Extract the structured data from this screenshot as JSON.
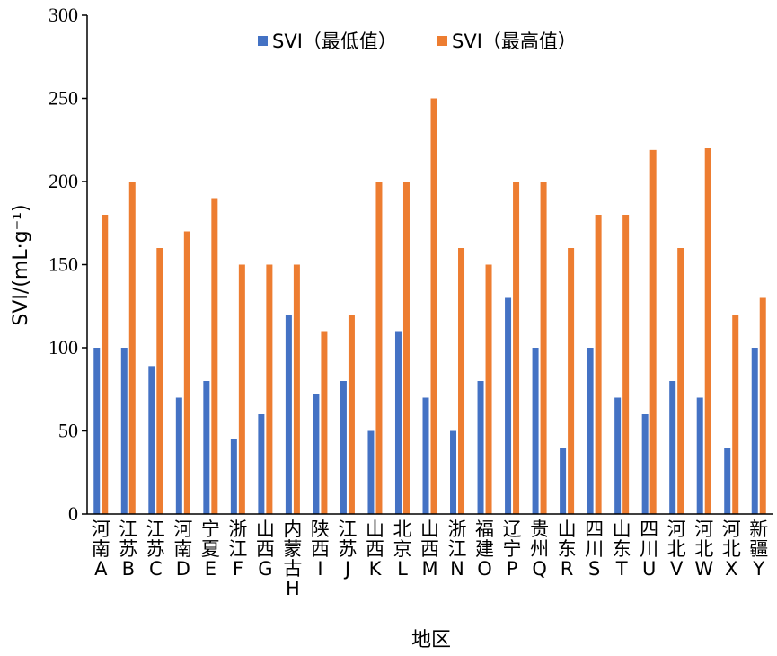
{
  "chart_data": {
    "type": "bar",
    "title": "",
    "xlabel": "地区",
    "ylabel": "SVI/(mL·g⁻¹)",
    "ylim": [
      0,
      300
    ],
    "yticks": [
      "0",
      "50",
      "100",
      "150",
      "200",
      "250",
      "300"
    ],
    "grid": false,
    "legend_position": "top-center",
    "categories": [
      "河南 A",
      "江苏 B",
      "江苏 C",
      "河南 D",
      "宁夏 E",
      "浙江 F",
      "山西 G",
      "内蒙古 H",
      "陕西 I",
      "江苏 J",
      "山西 K",
      "北京 L",
      "山西 M",
      "浙江 N",
      "福建 O",
      "辽宁 P",
      "贵州 Q",
      "山东 R",
      "四川 S",
      "山东 T",
      "四川 U",
      "河北 V",
      "河北 W",
      "河北 X",
      "新疆 Y"
    ],
    "series": [
      {
        "name": "SVI（最低值）",
        "color": "#4472C4",
        "values": [
          100,
          100,
          89,
          70,
          80,
          45,
          60,
          120,
          72,
          80,
          50,
          110,
          70,
          50,
          80,
          130,
          100,
          40,
          100,
          70,
          60,
          80,
          70,
          40,
          100
        ]
      },
      {
        "name": "SVI（最高值）",
        "color": "#ED7D31",
        "values": [
          180,
          200,
          160,
          170,
          190,
          150,
          150,
          150,
          110,
          120,
          200,
          200,
          250,
          160,
          150,
          200,
          200,
          160,
          180,
          180,
          219,
          160,
          220,
          120,
          130
        ]
      }
    ]
  }
}
